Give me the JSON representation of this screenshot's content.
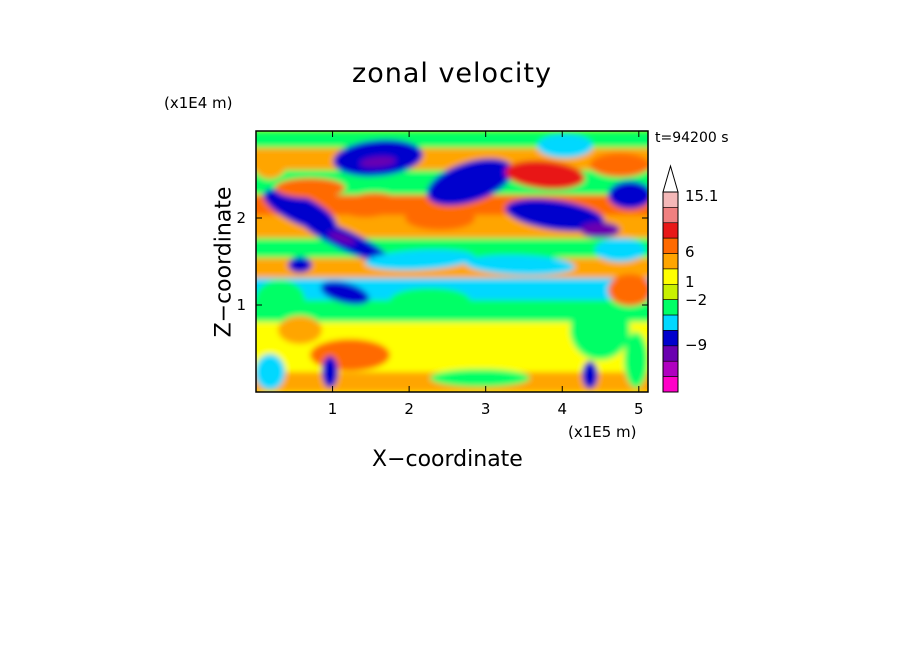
{
  "chart_data": {
    "type": "heatmap",
    "title": "zonal velocity",
    "xlabel": "X−coordinate",
    "ylabel": "Z−coordinate",
    "x_unit": "(x1E5 m)",
    "y_unit": "(x1E4 m)",
    "annotation": "t=94200 s",
    "xlim": [
      0,
      5.12
    ],
    "ylim": [
      0,
      3.0
    ],
    "x_ticks": [
      1,
      2,
      3,
      4,
      5
    ],
    "y_ticks": [
      1,
      2
    ],
    "colorbar": {
      "labels": [
        "15.1",
        "6",
        "1",
        "−2",
        "−9"
      ],
      "label_values": [
        15.1,
        6,
        1,
        -2,
        -9
      ],
      "levels_top_to_bottom": [
        {
          "color": "#ffffff",
          "note": "over-range arrow"
        },
        {
          "color": "#f4b8b8"
        },
        {
          "color": "#f08080"
        },
        {
          "color": "#e81818"
        },
        {
          "color": "#ff6a00"
        },
        {
          "color": "#ffa500"
        },
        {
          "color": "#ffff00"
        },
        {
          "color": "#c8f000"
        },
        {
          "color": "#00ff66"
        },
        {
          "color": "#00d8ff"
        },
        {
          "color": "#0000cd"
        },
        {
          "color": "#6a00b0"
        },
        {
          "color": "#b000c0"
        },
        {
          "color": "#ff00c8"
        }
      ]
    },
    "palette": {
      "yellow": "#ffff00",
      "green": "#00ff66",
      "cyan": "#00d8ff",
      "blue": "#0000cd",
      "purple": "#6a00b0",
      "orange": "#ff6a00",
      "lightorange": "#ffa500",
      "red": "#e81818"
    }
  }
}
